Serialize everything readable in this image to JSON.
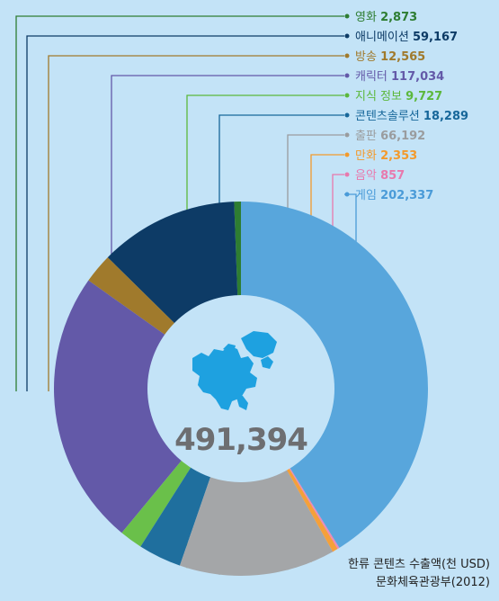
{
  "chart_data": {
    "type": "pie",
    "total_label": "491,394",
    "series": [
      {
        "name": "영화",
        "label": "2,873",
        "value": 2873,
        "color": "#2e7d32",
        "legend_color": "#2e7d32"
      },
      {
        "name": "애니메이션",
        "label": "59,167",
        "value": 59167,
        "color": "#0d3b66",
        "legend_color": "#0d3b66"
      },
      {
        "name": "방송",
        "label": "12,565",
        "value": 12565,
        "color": "#a07a2c",
        "legend_color": "#a07a2c"
      },
      {
        "name": "캐릭터",
        "label": "117,034",
        "value": 117034,
        "color": "#6359a8",
        "legend_color": "#6359a8"
      },
      {
        "name": "지식 정보",
        "label": "9,727",
        "value": 9727,
        "color": "#6ac04a",
        "legend_color": "#5cb83c"
      },
      {
        "name": "콘텐츠솔루션",
        "label": "18,289",
        "value": 18289,
        "color": "#1f6f9e",
        "legend_color": "#17679a"
      },
      {
        "name": "출판",
        "label": "66,192",
        "value": 66192,
        "color": "#a4a6a8",
        "legend_color": "#9a9c9e"
      },
      {
        "name": "만화",
        "label": "2,353",
        "value": 2353,
        "color": "#f5a03a",
        "legend_color": "#f39a2c"
      },
      {
        "name": "음악",
        "label": "857",
        "value": 857,
        "color": "#ee8ab6",
        "legend_color": "#e879ad"
      },
      {
        "name": "게임",
        "label": "202,337",
        "value": 202337,
        "color": "#58a6dc",
        "legend_color": "#4a9bd8"
      }
    ]
  },
  "footnote": {
    "line1": "한류 콘텐츠 수출액(천 USD)",
    "line2": "문화체육관광부(2012)"
  }
}
